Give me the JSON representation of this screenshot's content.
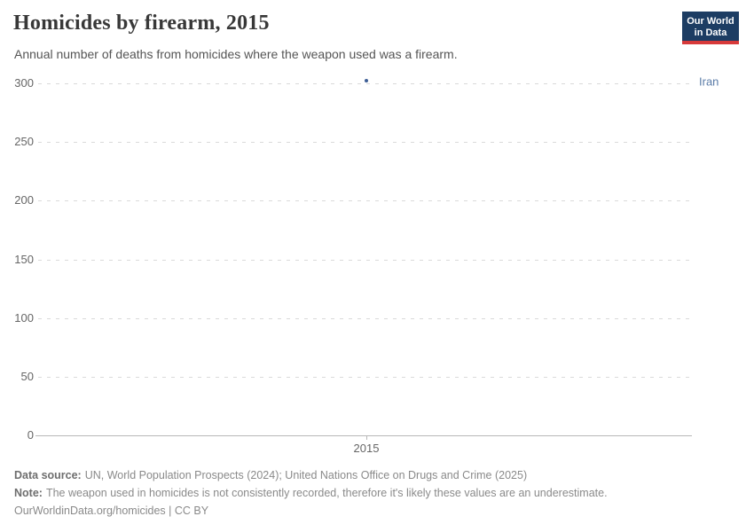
{
  "header": {
    "title": "Homicides by firearm, 2015",
    "subtitle": "Annual number of deaths from homicides where the weapon used was a firearm.",
    "logo": {
      "line1": "Our World",
      "line2": "in Data"
    }
  },
  "chart_data": {
    "type": "scatter",
    "title": "Homicides by firearm, 2015",
    "x": [
      2015
    ],
    "xtick_labels": [
      "2015"
    ],
    "series": [
      {
        "name": "Iran",
        "values": [
          302
        ]
      }
    ],
    "xlabel": "",
    "ylabel": "",
    "ylim": [
      0,
      300
    ],
    "yticks": [
      0,
      50,
      100,
      150,
      200,
      250,
      300
    ],
    "grid": "horizontal-dashed",
    "legend": "entity-label-right-of-plot"
  },
  "footer": {
    "source_label": "Data source:",
    "source_text": "UN, World Population Prospects (2024); United Nations Office on Drugs and Crime (2025)",
    "note_label": "Note:",
    "note_text": "The weapon used in homicides is not consistently recorded, therefore it's likely these values are an underestimate.",
    "license_text": "OurWorldinData.org/homicides | CC BY"
  },
  "colors": {
    "series": "#3e5f96",
    "entity_label": "#5b7ca8",
    "logo_bg": "#1d3d63",
    "logo_accent": "#d73a3a",
    "gridline": "#dadada",
    "axis": "#b8b8b8",
    "tick_label": "#666666"
  }
}
